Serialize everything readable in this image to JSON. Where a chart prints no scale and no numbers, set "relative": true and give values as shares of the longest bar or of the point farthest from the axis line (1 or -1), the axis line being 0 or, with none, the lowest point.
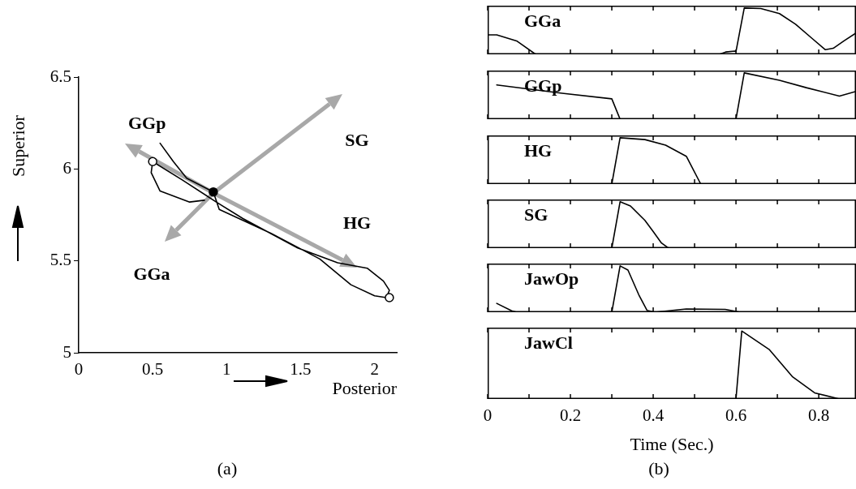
{
  "chart_data": [
    {
      "type": "line",
      "xlabel": "Posterior",
      "ylabel": "Superior",
      "xlim": [
        0,
        2.15
      ],
      "xticks": [
        0,
        0.5,
        1,
        1.5,
        2
      ],
      "ylim": [
        5,
        6.5
      ],
      "yticks": [
        5,
        5.5,
        6,
        6.5
      ],
      "annotations": [
        {
          "text": "GGp",
          "x": 0.5,
          "y": 6.04
        },
        "SG",
        "HG",
        "GGa",
        "(a)"
      ],
      "series": [
        {
          "color": "#000000",
          "x": [
            0.55,
            0.64,
            0.73,
            0.91,
            0.95,
            1.3,
            1.63,
            1.84,
            2.0,
            2.08,
            2.1,
            2.06,
            1.95,
            1.75,
            1.48,
            1.11,
            0.93,
            0.7,
            0.5,
            0.49,
            0.55,
            0.75,
            0.85
          ],
          "values": [
            6.14,
            6.04,
            5.95,
            5.875,
            5.78,
            5.65,
            5.51,
            5.37,
            5.31,
            5.3,
            5.34,
            5.39,
            5.46,
            5.49,
            5.57,
            5.73,
            5.82,
            5.94,
            6.04,
            5.98,
            5.88,
            5.82,
            5.83
          ]
        },
        {
          "type": "scatter",
          "marker": "circle",
          "color": "#000000",
          "colors": [
            "#ffffff",
            "#000000",
            "#ffffff"
          ],
          "x": [
            0.5,
            0.91,
            2.1
          ],
          "values": [
            6.04,
            5.875,
            5.3
          ]
        }
      ]
    },
    {
      "type": "line",
      "relative": true,
      "xlim": [
        0,
        0.89
      ],
      "xticks": [
        0,
        {
          "value": 0.1,
          "label": null
        },
        0.2,
        {
          "value": 0.3,
          "label": null
        },
        0.4,
        {
          "value": 0.5,
          "label": null
        },
        0.6,
        {
          "value": 0.7,
          "label": null
        },
        0.8
      ],
      "tick_labels": false,
      "series": [
        {
          "name": "GGa",
          "color": "#000000",
          "x": [
            0,
            0.022,
            0.07,
            0.116,
            0.56,
            0.575,
            0.597,
            0.6,
            0.62,
            0.66,
            0.705,
            0.744,
            0.783,
            0.816,
            0.835,
            0.861,
            0.89
          ],
          "values": [
            0.42,
            0.42,
            0.29,
            0,
            0,
            0.05,
            0.07,
            0.06,
            1,
            0.99,
            0.88,
            0.65,
            0.35,
            0.1,
            0.13,
            0.29,
            0.46
          ]
        }
      ]
    },
    {
      "type": "line",
      "relative": true,
      "xlim": [
        0,
        0.89
      ],
      "xticks": [
        0,
        {
          "value": 0.1,
          "label": null
        },
        0.2,
        {
          "value": 0.3,
          "label": null
        },
        0.4,
        {
          "value": 0.5,
          "label": null
        },
        0.6,
        {
          "value": 0.7,
          "label": null
        },
        0.8
      ],
      "tick_labels": false,
      "series": [
        {
          "name": "GGp",
          "color": "#000000",
          "x": [
            0.022,
            0.18,
            0.3,
            0.32,
            0.6,
            0.62,
            0.705,
            0.77,
            0.85,
            0.89
          ],
          "values": [
            0.74,
            0.56,
            0.44,
            0,
            0,
            1,
            0.84,
            0.68,
            0.5,
            0.6
          ]
        }
      ]
    },
    {
      "type": "line",
      "relative": true,
      "xlim": [
        0,
        0.89
      ],
      "xticks": [
        0,
        {
          "value": 0.1,
          "label": null
        },
        0.2,
        {
          "value": 0.3,
          "label": null
        },
        0.4,
        {
          "value": 0.5,
          "label": null
        },
        0.6,
        {
          "value": 0.7,
          "label": null
        },
        0.8
      ],
      "tick_labels": false,
      "series": [
        {
          "name": "HG",
          "color": "#000000",
          "x": [
            0,
            0.3,
            0.32,
            0.38,
            0.43,
            0.48,
            0.515,
            0.89
          ],
          "values": [
            0,
            0,
            1,
            0.96,
            0.84,
            0.6,
            0,
            0
          ]
        }
      ]
    },
    {
      "type": "line",
      "relative": true,
      "xlim": [
        0,
        0.89
      ],
      "xticks": [
        0,
        {
          "value": 0.1,
          "label": null
        },
        0.2,
        {
          "value": 0.3,
          "label": null
        },
        0.4,
        {
          "value": 0.5,
          "label": null
        },
        0.6,
        {
          "value": 0.7,
          "label": null
        },
        0.8
      ],
      "tick_labels": false,
      "series": [
        {
          "name": "SG",
          "color": "#000000",
          "x": [
            0,
            0.3,
            0.32,
            0.345,
            0.38,
            0.4,
            0.42,
            0.437,
            0.89
          ],
          "values": [
            0,
            0,
            1,
            0.91,
            0.6,
            0.36,
            0.11,
            0,
            0
          ]
        }
      ]
    },
    {
      "type": "line",
      "relative": true,
      "xlim": [
        0,
        0.89
      ],
      "xticks": [
        0,
        {
          "value": 0.1,
          "label": null
        },
        0.2,
        {
          "value": 0.3,
          "label": null
        },
        0.4,
        {
          "value": 0.5,
          "label": null
        },
        0.6,
        {
          "value": 0.7,
          "label": null
        },
        0.8
      ],
      "tick_labels": false,
      "series": [
        {
          "name": "JawOp",
          "color": "#000000",
          "x": [
            0.022,
            0.058,
            0.07,
            0.3,
            0.32,
            0.339,
            0.365,
            0.385,
            0.404,
            0.48,
            0.574,
            0.61,
            0.89
          ],
          "values": [
            0.19,
            0.03,
            0,
            0,
            1,
            0.91,
            0.38,
            0.04,
            0,
            0.07,
            0.06,
            0,
            0
          ]
        }
      ]
    },
    {
      "type": "line",
      "relative": true,
      "xlim": [
        0,
        0.89
      ],
      "xticks": [
        0,
        {
          "value": 0.1,
          "label": null
        },
        0.2,
        {
          "value": 0.3,
          "label": null
        },
        0.4,
        {
          "value": 0.5,
          "label": null
        },
        0.6,
        {
          "value": 0.7,
          "label": null
        },
        0.8
      ],
      "tick_labels": "x",
      "xlabel": "Time (Sec.)",
      "annotations": [
        "(b)"
      ],
      "series": [
        {
          "name": "JawCl",
          "color": "#000000",
          "x": [
            0,
            0.6,
            0.614,
            0.68,
            0.736,
            0.79,
            0.85,
            0.89
          ],
          "values": [
            0,
            0,
            1,
            0.73,
            0.33,
            0.09,
            0,
            0
          ]
        }
      ]
    }
  ]
}
